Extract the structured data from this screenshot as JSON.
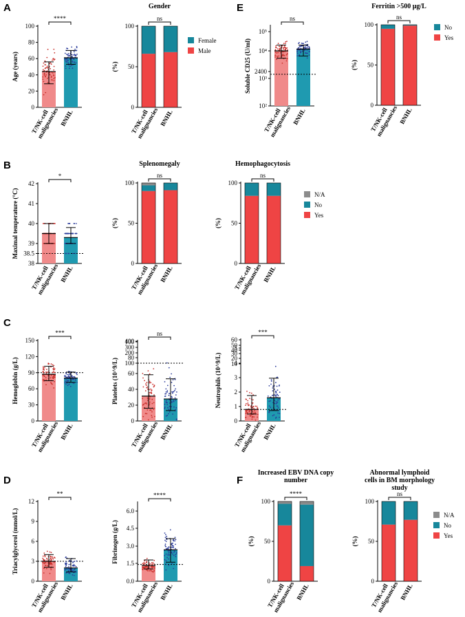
{
  "colors": {
    "red": "#ef4444",
    "teal": "#17879b",
    "gray": "#8c8c8c",
    "dot_red": "#c9302c",
    "dot_blue": "#2b3c9b",
    "bar_red_light": "#f08a8a",
    "bar_teal": "#1f9ab0"
  },
  "panels": {
    "A": "A",
    "B": "B",
    "C": "C",
    "D": "D",
    "E": "E",
    "F": "F"
  },
  "groups": {
    "g1_line1": "T/NK-cell",
    "g1_line2": "malignancies",
    "g2": "BNHL"
  },
  "legends": {
    "sex": [
      "Female",
      "Male"
    ],
    "yn": [
      "No",
      "Yes"
    ],
    "nayn": [
      "N/A",
      "No",
      "Yes"
    ]
  },
  "chart_data": [
    {
      "id": "age",
      "panel": "A",
      "type": "bar",
      "title": "",
      "ylabel": "Age (years)",
      "yticks": [
        "0",
        "20",
        "40",
        "60",
        "80",
        "100"
      ],
      "ylim": [
        0,
        100
      ],
      "categories": [
        "T/NK-cell malignancies",
        "BNHL"
      ],
      "values": [
        44,
        61
      ],
      "sd_low": [
        29,
        53
      ],
      "sd_high": [
        56,
        70
      ],
      "significance": "****"
    },
    {
      "id": "gender",
      "panel": "A",
      "type": "bar",
      "title": "Gender",
      "ylabel": "(%)",
      "yticks": [
        "0",
        "50",
        "100"
      ],
      "ylim": [
        0,
        100
      ],
      "categories": [
        "T/NK-cell malignancies",
        "BNHL"
      ],
      "series": [
        {
          "name": "Male",
          "values": [
            66,
            68
          ]
        },
        {
          "name": "Female",
          "values": [
            34,
            32
          ]
        }
      ],
      "significance": "ns"
    },
    {
      "id": "scd25",
      "panel": "E",
      "type": "bar",
      "title": "",
      "ylabel": "Soluble CD25 (U/ml)",
      "yscale": "log",
      "yticks": [
        "10²",
        "10³",
        "2400",
        "10⁴",
        "10⁵"
      ],
      "ylim": [
        100,
        300000
      ],
      "reference_line": 2400,
      "categories": [
        "T/NK-cell malignancies",
        "BNHL"
      ],
      "values": [
        25000,
        30000
      ],
      "sd_low": [
        12000,
        15000
      ],
      "sd_high": [
        45000,
        45000
      ],
      "significance": "ns"
    },
    {
      "id": "ferritin",
      "panel": "E",
      "type": "bar",
      "title": "Ferritin >500 μg/L",
      "ylabel": "(%)",
      "yticks": [
        "0",
        "50",
        "100"
      ],
      "ylim": [
        0,
        100
      ],
      "categories": [
        "T/NK-cell malignancies",
        "BNHL"
      ],
      "series": [
        {
          "name": "Yes",
          "values": [
            95,
            99
          ]
        },
        {
          "name": "No",
          "values": [
            5,
            1
          ]
        }
      ],
      "significance": "ns"
    },
    {
      "id": "temperature",
      "panel": "B",
      "type": "bar",
      "title": "",
      "ylabel": "Maximal temperature (°C)",
      "yticks": [
        "38",
        "38.5",
        "39",
        "40",
        "41",
        "42"
      ],
      "ylim": [
        38,
        42
      ],
      "reference_line": 38.5,
      "categories": [
        "T/NK-cell malignancies",
        "BNHL"
      ],
      "values": [
        39.5,
        39.3
      ],
      "sd_low": [
        39.0,
        39.0
      ],
      "sd_high": [
        40.0,
        39.8
      ],
      "significance": "*"
    },
    {
      "id": "splenomegaly",
      "panel": "B",
      "type": "bar",
      "title": "Splenomegaly",
      "ylabel": "(%)",
      "yticks": [
        "0",
        "50",
        "100"
      ],
      "ylim": [
        0,
        100
      ],
      "categories": [
        "T/NK-cell malignancies",
        "BNHL"
      ],
      "series": [
        {
          "name": "Yes",
          "values": [
            90,
            91
          ]
        },
        {
          "name": "No",
          "values": [
            7,
            9
          ]
        },
        {
          "name": "N/A",
          "values": [
            3,
            0
          ]
        }
      ],
      "significance": "ns"
    },
    {
      "id": "hemophagocytosis",
      "panel": "B",
      "type": "bar",
      "title": "Hemophagocytosis",
      "ylabel": "(%)",
      "yticks": [
        "0",
        "50",
        "100"
      ],
      "ylim": [
        0,
        100
      ],
      "categories": [
        "T/NK-cell malignancies",
        "BNHL"
      ],
      "series": [
        {
          "name": "Yes",
          "values": [
            84,
            84
          ]
        },
        {
          "name": "No",
          "values": [
            16,
            16
          ]
        },
        {
          "name": "N/A",
          "values": [
            0,
            0
          ]
        }
      ],
      "significance": "ns"
    },
    {
      "id": "hemoglobin",
      "panel": "C",
      "type": "bar",
      "title": "",
      "ylabel": "Hemoglobin (g/L)",
      "yticks": [
        "0",
        "30",
        "60",
        "90",
        "120",
        "150"
      ],
      "ylim": [
        0,
        150
      ],
      "reference_line": 90,
      "categories": [
        "T/NK-cell malignancies",
        "BNHL"
      ],
      "values": [
        87,
        80
      ],
      "sd_low": [
        75,
        72
      ],
      "sd_high": [
        102,
        91
      ],
      "significance": "***"
    },
    {
      "id": "platelets",
      "panel": "C",
      "type": "bar",
      "title": "",
      "ylabel": "Platelets (10^9/L)",
      "yscale": "segmented",
      "yticks": [
        "0",
        "20",
        "40",
        "60",
        "80",
        "100",
        "100",
        "200",
        "300",
        "400"
      ],
      "ylim": [
        0,
        400
      ],
      "reference_line": 100,
      "categories": [
        "T/NK-cell malignancies",
        "BNHL"
      ],
      "values": [
        43,
        38
      ],
      "sd_low": [
        22,
        18
      ],
      "sd_high": [
        80,
        73
      ],
      "significance": "ns"
    },
    {
      "id": "neutrophils",
      "panel": "C",
      "type": "bar",
      "title": "",
      "ylabel": "Neutrophils (10^9/L)",
      "yscale": "segmented",
      "yticks": [
        "0",
        "1",
        "2",
        "3",
        "4",
        "5",
        "10",
        "20",
        "30",
        "40",
        "50",
        "60"
      ],
      "ylim": [
        0,
        60
      ],
      "reference_line": 1,
      "categories": [
        "T/NK-cell malignancies",
        "BNHL"
      ],
      "values": [
        1.0,
        2.0
      ],
      "sd_low": [
        0.6,
        0.9
      ],
      "sd_high": [
        2.2,
        3.7
      ],
      "significance": "***"
    },
    {
      "id": "triacylglycerol",
      "panel": "D",
      "type": "bar",
      "title": "",
      "ylabel": "Triacylglycerol (mmol/L)",
      "yticks": [
        "0",
        "3",
        "6",
        "9",
        "12"
      ],
      "ylim": [
        0,
        12
      ],
      "reference_line": 3,
      "categories": [
        "T/NK-cell malignancies",
        "BNHL"
      ],
      "values": [
        3.0,
        2.0
      ],
      "sd_low": [
        2.1,
        1.4
      ],
      "sd_high": [
        4.0,
        3.4
      ],
      "significance": "**"
    },
    {
      "id": "fibrinogen",
      "panel": "D",
      "type": "bar",
      "title": "",
      "ylabel": "Fibrinogen (g/L)",
      "yticks": [
        "0.0",
        "1.5",
        "3.0",
        "4.5",
        "6.0"
      ],
      "ylim": [
        0,
        7
      ],
      "reference_line": 1.5,
      "categories": [
        "T/NK-cell malignancies",
        "BNHL"
      ],
      "values": [
        1.4,
        2.8
      ],
      "sd_low": [
        1.1,
        1.7
      ],
      "sd_high": [
        1.9,
        3.8
      ],
      "significance": "****"
    },
    {
      "id": "ebv",
      "panel": "F",
      "type": "bar",
      "title": "Increased EBV DNA copy number",
      "ylabel": "(%)",
      "yticks": [
        "0",
        "50",
        "100"
      ],
      "ylim": [
        0,
        100
      ],
      "categories": [
        "T/NK-cell malignancies",
        "BNHL"
      ],
      "series": [
        {
          "name": "Yes",
          "values": [
            70,
            19
          ]
        },
        {
          "name": "No",
          "values": [
            27,
            77
          ]
        },
        {
          "name": "N/A",
          "values": [
            3,
            4
          ]
        }
      ],
      "significance": "****"
    },
    {
      "id": "lymphoid",
      "panel": "F",
      "type": "bar",
      "title": "Abnormal lymphoid cells in BM morphology study",
      "ylabel": "(%)",
      "yticks": [
        "0",
        "50",
        "100"
      ],
      "ylim": [
        0,
        100
      ],
      "categories": [
        "T/NK-cell malignancies",
        "BNHL"
      ],
      "series": [
        {
          "name": "Yes",
          "values": [
            71,
            77
          ]
        },
        {
          "name": "No",
          "values": [
            29,
            23
          ]
        },
        {
          "name": "N/A",
          "values": [
            0,
            0
          ]
        }
      ],
      "significance": "ns"
    }
  ]
}
